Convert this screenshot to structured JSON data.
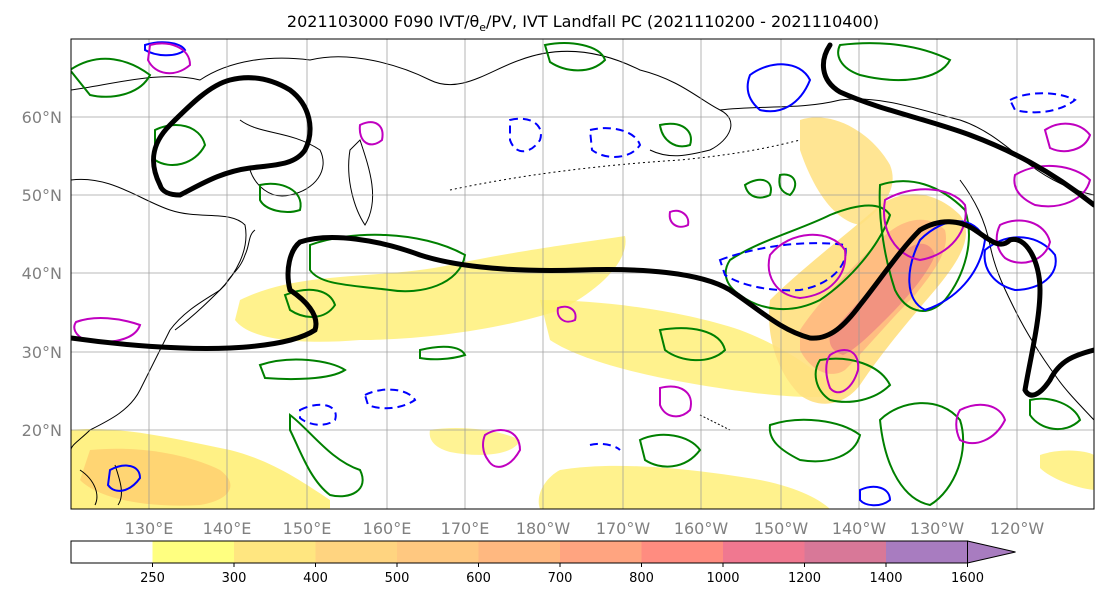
{
  "chart_data": {
    "type": "map",
    "title": "2021103000 F090 IVT/θ",
    "title_sub": "e",
    "title_rest": "/PV, IVT Landfall PC (2021110200 - 2021110400)",
    "grid": true,
    "lon_ticks": [
      "130°E",
      "140°E",
      "150°E",
      "160°E",
      "170°E",
      "180°W",
      "170°W",
      "160°W",
      "150°W",
      "140°W",
      "130°W",
      "120°W"
    ],
    "lat_ticks": [
      "60°N",
      "50°N",
      "40°N",
      "30°N",
      "20°N"
    ],
    "lon_range": [
      120,
      250
    ],
    "lat_range": [
      10,
      70
    ],
    "colorbar": {
      "levels": [
        "250",
        "300",
        "400",
        "500",
        "600",
        "700",
        "800",
        "1000",
        "1200",
        "1400",
        "1600"
      ],
      "colors": [
        "#ffffff",
        "#ffff80",
        "#ffe680",
        "#ffd480",
        "#ffc880",
        "#ffb880",
        "#ffa480",
        "#ff8c80",
        "#f07890",
        "#d87898",
        "#a87cc0",
        "#a87cc0"
      ],
      "extend": "max"
    },
    "contours": {
      "pv_color": "#008000",
      "pv_pos_color": "#0000ff",
      "theta_color": "#c000c0",
      "landfall_color": "#000000"
    }
  }
}
